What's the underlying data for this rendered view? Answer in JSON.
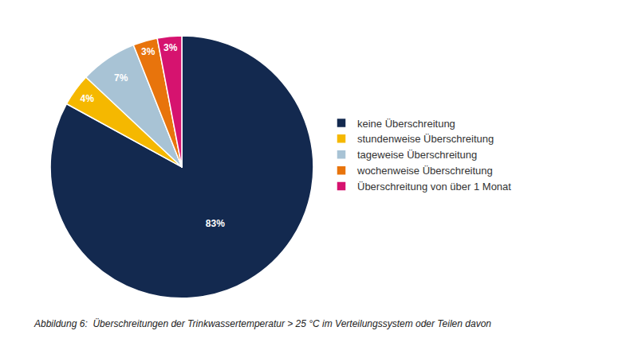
{
  "chart_data": {
    "type": "pie",
    "caption": "Abbildung 6:  Überschreitungen der Trinkwassertemperatur > 25 °C im Verteilungssystem oder Teilen davon",
    "categories": [
      "keine Überschreitung",
      "stundenweise Überschreitung",
      "tageweise Überschreitung",
      "wochenweise Überschreitung",
      "Überschreitung von über 1 Monat"
    ],
    "values": [
      83,
      4,
      7,
      3,
      3
    ],
    "value_labels": [
      "83%",
      "4%",
      "7%",
      "3%",
      "3%"
    ],
    "colors": [
      "#13294f",
      "#f5b800",
      "#a8c3d5",
      "#e8740c",
      "#d6136f"
    ],
    "data_labels": true,
    "legend": "right"
  }
}
